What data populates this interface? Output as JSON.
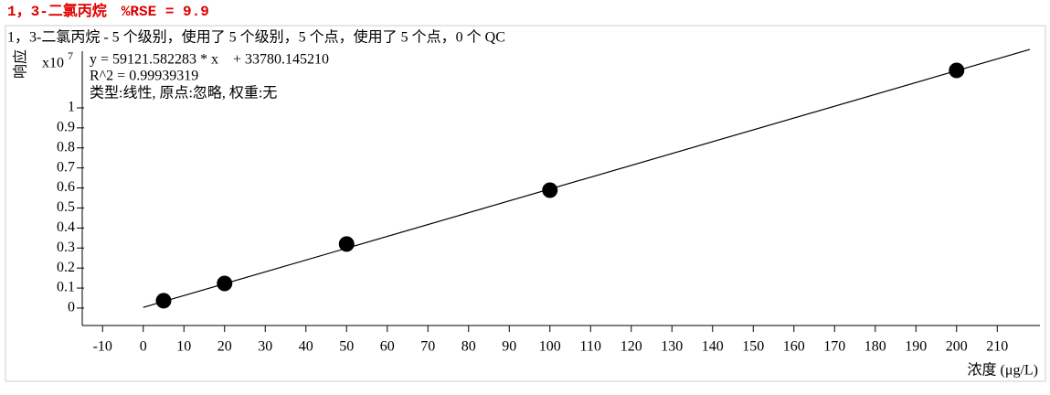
{
  "header": "1，3-二氯丙烷　%RSE = 9.9",
  "chart_data": {
    "type": "scatter",
    "title": "1，3-二氯丙烷 - 5 个级别，使用了 5 个级别，5 个点，使用了 5 个点，0 个 QC",
    "y_label": "响应",
    "x_label": "浓度 (μg/L)",
    "y_multiplier": {
      "base": "x10",
      "exponent": "7"
    },
    "annotations": [
      "y = 59121.582283 * x　+ 33780.145210",
      "R^2 = 0.99939319",
      "类型:线性, 原点:忽略, 权重:无"
    ],
    "x": [
      5,
      20,
      50,
      100,
      200
    ],
    "values": [
      0.037,
      0.123,
      0.32,
      0.589,
      1.187
    ],
    "color": "#000000",
    "fit_line": {
      "x": [
        0,
        218
      ],
      "values": [
        0.0034,
        1.292
      ],
      "color": "#000000"
    },
    "xlim": [
      -15,
      220.5
    ],
    "xticks": [
      -10,
      0,
      10,
      20,
      30,
      40,
      50,
      60,
      70,
      80,
      90,
      100,
      110,
      120,
      130,
      140,
      150,
      160,
      170,
      180,
      190,
      200,
      210
    ],
    "ylim": [
      -0.087,
      1.283
    ],
    "yticks": [
      0,
      0.1,
      0.2,
      0.3,
      0.4,
      0.5,
      0.6,
      0.7,
      0.8,
      0.9,
      1
    ]
  }
}
